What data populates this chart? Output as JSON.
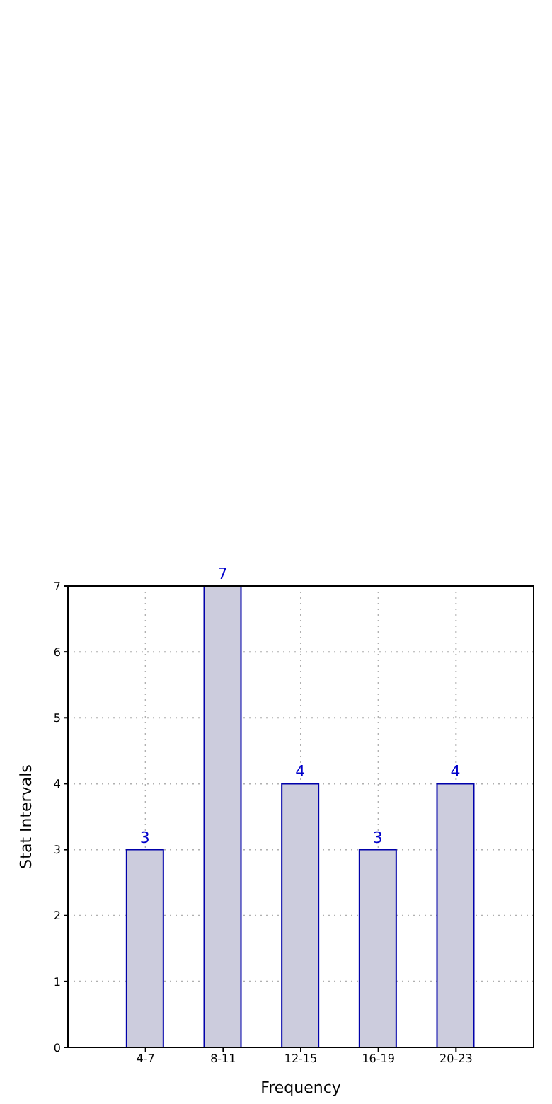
{
  "chart_data": {
    "type": "bar",
    "xlabel": "Frequency",
    "ylabel": "Stat Intervals",
    "categories": [
      "4-7",
      "8-11",
      "12-15",
      "16-19",
      "20-23"
    ],
    "values": [
      3,
      7,
      4,
      3,
      4
    ],
    "color": "#ccccdd",
    "ylim": [
      0,
      7
    ],
    "yticks": [
      0,
      1,
      2,
      3,
      4,
      5,
      6,
      7
    ],
    "grid": true,
    "data_labels": true
  }
}
